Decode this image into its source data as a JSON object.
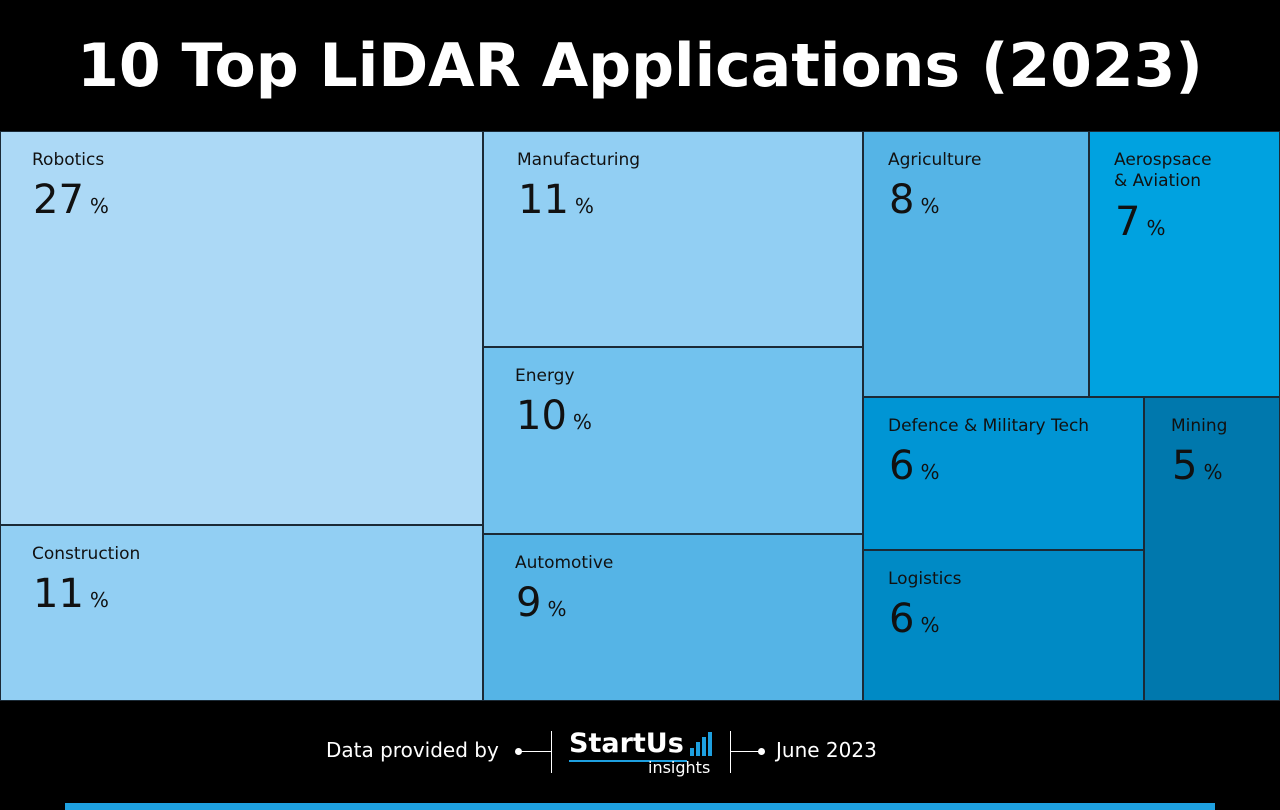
{
  "header": {
    "title": "10 Top LiDAR Applications (2023)"
  },
  "chart_data": {
    "type": "treemap",
    "title": "10 Top LiDAR Applications (2023)",
    "unit": "%",
    "items": [
      {
        "label": "Robotics",
        "value": 27,
        "color": "#acd9f6"
      },
      {
        "label": "Construction",
        "value": 11,
        "color": "#92cff3"
      },
      {
        "label": "Manufacturing",
        "value": 11,
        "color": "#92cff3"
      },
      {
        "label": "Energy",
        "value": 10,
        "color": "#72c2ee"
      },
      {
        "label": "Automotive",
        "value": 9,
        "color": "#55b4e6"
      },
      {
        "label": "Agriculture",
        "value": 8,
        "color": "#55b4e6"
      },
      {
        "label": "Aerospsace\n& Aviation",
        "value": 7,
        "color": "#00a2e0"
      },
      {
        "label": "Defence & Military Tech",
        "value": 6,
        "color": "#0095d4"
      },
      {
        "label": "Logistics",
        "value": 6,
        "color": "#008ac5"
      },
      {
        "label": "Mining",
        "value": 5,
        "color": "#0078ad"
      }
    ]
  },
  "footer": {
    "provided_label": "Data provided by",
    "logo_main": "StartUs",
    "logo_sub": "insights",
    "date": "June 2023",
    "accent_color": "#1ea0e0"
  }
}
